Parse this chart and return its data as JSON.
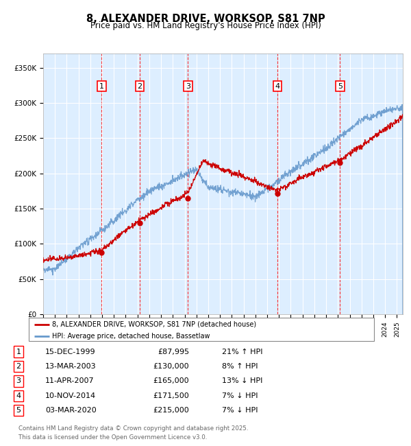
{
  "title": "8, ALEXANDER DRIVE, WORKSOP, S81 7NP",
  "subtitle": "Price paid vs. HM Land Registry's House Price Index (HPI)",
  "background_color": "#ffffff",
  "plot_bg_color": "#ddeeff",
  "grid_color": "#ffffff",
  "hpi_color": "#6699cc",
  "price_color": "#cc0000",
  "ylim": [
    0,
    370000
  ],
  "yticks": [
    0,
    50000,
    100000,
    150000,
    200000,
    250000,
    300000,
    350000
  ],
  "ytick_labels": [
    "£0",
    "£50K",
    "£100K",
    "£150K",
    "£200K",
    "£250K",
    "£300K",
    "£350K"
  ],
  "transactions": [
    {
      "num": 1,
      "date": "15-DEC-1999",
      "price": 87995,
      "hpi_diff": "21% ↑ HPI",
      "year_x": 1999.96
    },
    {
      "num": 2,
      "date": "13-MAR-2003",
      "price": 130000,
      "hpi_diff": "8% ↑ HPI",
      "year_x": 2003.2
    },
    {
      "num": 3,
      "date": "11-APR-2007",
      "price": 165000,
      "hpi_diff": "13% ↓ HPI",
      "year_x": 2007.28
    },
    {
      "num": 4,
      "date": "10-NOV-2014",
      "price": 171500,
      "hpi_diff": "7% ↓ HPI",
      "year_x": 2014.86
    },
    {
      "num": 5,
      "date": "03-MAR-2020",
      "price": 215000,
      "hpi_diff": "7% ↓ HPI",
      "year_x": 2020.17
    }
  ],
  "legend_entries": [
    {
      "label": "8, ALEXANDER DRIVE, WORKSOP, S81 7NP (detached house)",
      "color": "#cc0000"
    },
    {
      "label": "HPI: Average price, detached house, Bassetlaw",
      "color": "#6699cc"
    }
  ],
  "footer": "Contains HM Land Registry data © Crown copyright and database right 2025.\nThis data is licensed under the Open Government Licence v3.0.",
  "xlim_start": 1995,
  "xlim_end": 2025.5
}
